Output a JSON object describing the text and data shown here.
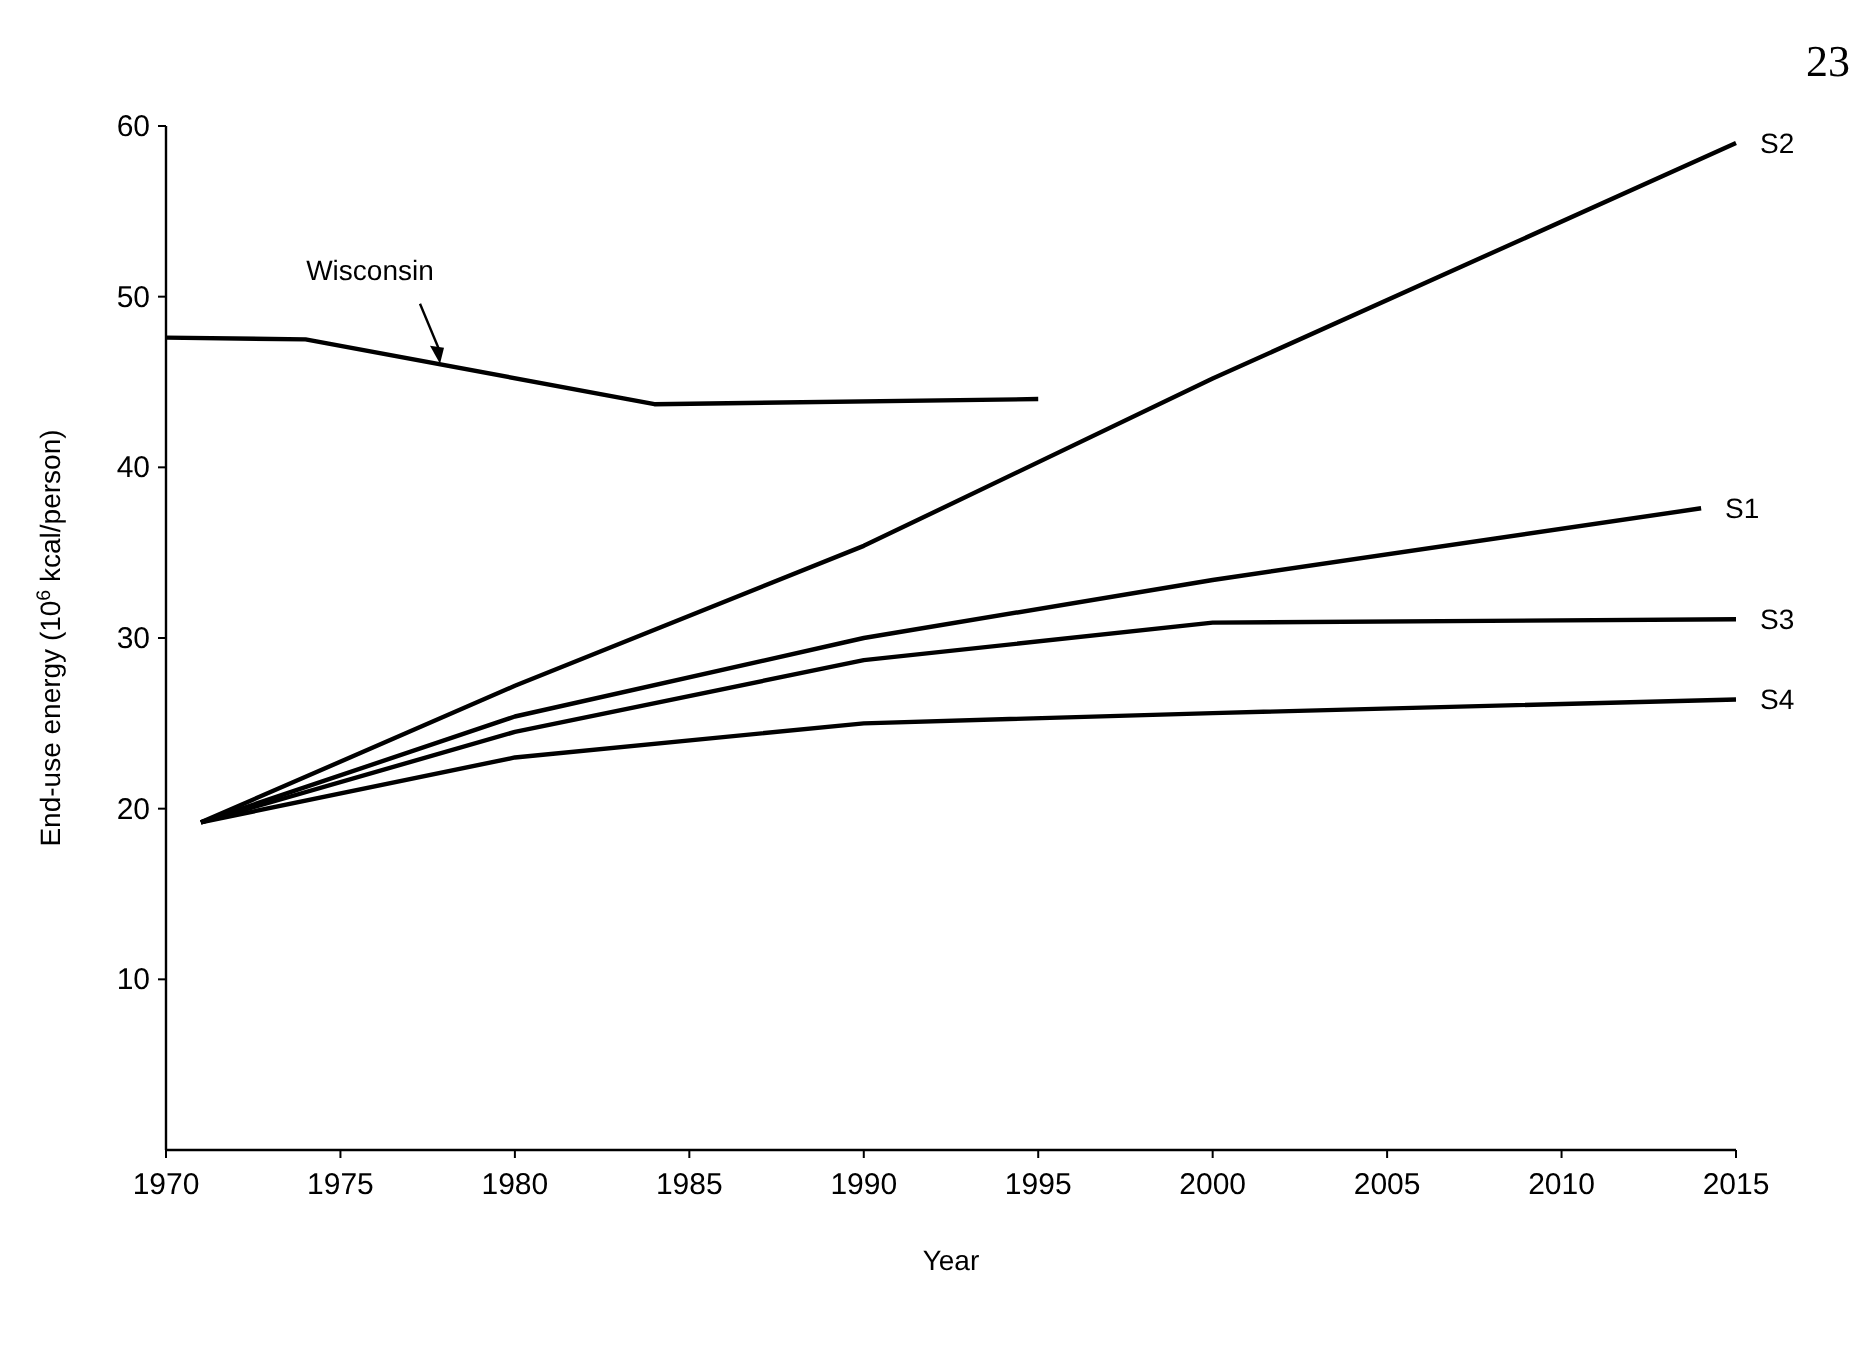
{
  "chart_data": {
    "type": "line",
    "xlabel": "Year",
    "ylabel": "End-use energy (10$^{6}$ kcal/person)",
    "xlim": [
      1970,
      2015
    ],
    "xticks": [
      1970,
      1975,
      1980,
      1985,
      1990,
      1995,
      2000,
      2005,
      2010,
      2015
    ],
    "ylim": [
      0,
      60
    ],
    "yticks": [
      10,
      20,
      30,
      40,
      50,
      60
    ],
    "grid": false,
    "marker": "none",
    "line_style": "solid",
    "annotations": [
      "23"
    ],
    "series": [
      {
        "name": "Wisconsin",
        "color": "#000000",
        "x": [
          1970,
          1974,
          1984,
          1995
        ],
        "values": [
          47.6,
          47.5,
          43.7,
          44.0
        ]
      },
      {
        "name": "S2",
        "color": "#000000",
        "x": [
          1971,
          1980,
          1990,
          2000,
          2015
        ],
        "values": [
          19.2,
          27.2,
          35.4,
          45.2,
          59.0
        ]
      },
      {
        "name": "S1",
        "color": "#000000",
        "x": [
          1971,
          1980,
          1990,
          2000,
          2014
        ],
        "values": [
          19.2,
          25.4,
          30.0,
          33.4,
          37.6
        ]
      },
      {
        "name": "S3",
        "color": "#000000",
        "x": [
          1971,
          1980,
          1990,
          2000,
          2015
        ],
        "values": [
          19.2,
          24.5,
          28.7,
          30.9,
          31.1
        ]
      },
      {
        "name": "S4",
        "color": "#000000",
        "x": [
          1971,
          1980,
          1990,
          2000,
          2015
        ],
        "values": [
          19.2,
          23.0,
          25.0,
          25.6,
          26.4
        ]
      }
    ]
  }
}
